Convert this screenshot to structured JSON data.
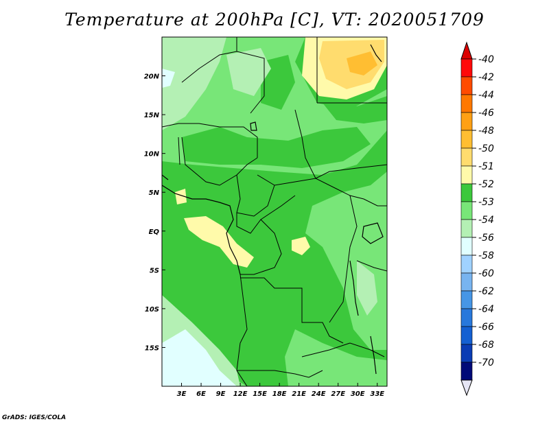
{
  "title": "Temperature at 200hPa [C], VT: 2020051709",
  "footer": "GrADS: IGES/COLA",
  "map": {
    "lon_range": [
      0,
      34.5
    ],
    "lat_range": [
      -20,
      25
    ],
    "lon_ticks": [
      {
        "value": 3,
        "label": "3E"
      },
      {
        "value": 6,
        "label": "6E"
      },
      {
        "value": 9,
        "label": "9E"
      },
      {
        "value": 12,
        "label": "12E"
      },
      {
        "value": 15,
        "label": "15E"
      },
      {
        "value": 18,
        "label": "18E"
      },
      {
        "value": 21,
        "label": "21E"
      },
      {
        "value": 24,
        "label": "24E"
      },
      {
        "value": 27,
        "label": "27E"
      },
      {
        "value": 30,
        "label": "30E"
      },
      {
        "value": 33,
        "label": "33E"
      }
    ],
    "lat_ticks": [
      {
        "value": 20,
        "label": "20N"
      },
      {
        "value": 15,
        "label": "15N"
      },
      {
        "value": 10,
        "label": "10N"
      },
      {
        "value": 5,
        "label": "5N"
      },
      {
        "value": 0,
        "label": "EQ"
      },
      {
        "value": -5,
        "label": "5S"
      },
      {
        "value": -10,
        "label": "10S"
      },
      {
        "value": -15,
        "label": "15S"
      }
    ]
  },
  "colorbar": {
    "labels": [
      "-40",
      "-42",
      "-44",
      "-46",
      "-48",
      "-50",
      "-51",
      "-52",
      "-53",
      "-54",
      "-56",
      "-58",
      "-60",
      "-62",
      "-64",
      "-66",
      "-68",
      "-70"
    ],
    "colors": [
      "#ff0a0a",
      "#ff4b00",
      "#ff7800",
      "#ffa014",
      "#ffbe32",
      "#ffdc6e",
      "#fffaaa",
      "#3cc83c",
      "#78e678",
      "#b4f0b4",
      "#e1ffff",
      "#a0d2ff",
      "#78b4f0",
      "#4696e6",
      "#2878dc",
      "#1460d2",
      "#0a3cb4",
      "#000a78"
    ],
    "top_color": "#dc0000",
    "bottom_color": "#e6e6f5"
  },
  "legend_colors": {
    "lt_neg51": "#fffaaa",
    "neg52": "#3cc83c",
    "neg53": "#78e678",
    "neg54": "#b4f0b4",
    "neg56": "#e1ffff",
    "neg50": "#ffdc6e",
    "neg48": "#ffbe32"
  }
}
